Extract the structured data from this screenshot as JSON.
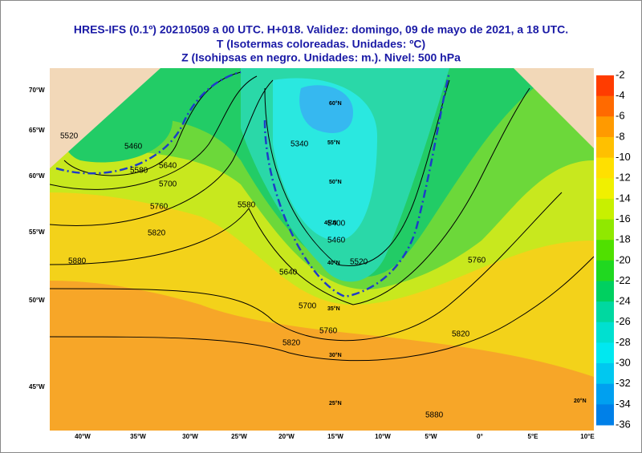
{
  "header": {
    "lines": [
      "HRES-IFS (0.1º) 20210509 a 00 UTC.  H+018. Validez: domingo, 09 de mayo de 2021,  a  18 UTC.",
      "T (Isotermas coloreadas. Unidades: ºC)",
      "Z (Isohipsas en negro. Unidades: m.).   Nivel: 500 hPa"
    ]
  },
  "colorbar": {
    "labels": [
      -2,
      -4,
      -6,
      -8,
      -10,
      -12,
      -14,
      -16,
      -18,
      -20,
      -22,
      -24,
      -26,
      -28,
      -30,
      -32,
      -34,
      -36
    ]
  },
  "left_labels": [
    "70°W",
    "65°W",
    "60°W",
    "55°W",
    "50°W",
    "45°W"
  ],
  "bottom_labels": [
    "40°W",
    "35°W",
    "30°W",
    "25°W",
    "20°W",
    "15°W",
    "10°W",
    "5°W",
    "0°",
    "5°E",
    "10°E"
  ],
  "latitude_labels": [
    "60°N",
    "55°N",
    "50°N",
    "45°N",
    "40°N",
    "35°N",
    "30°N",
    "25°N",
    "20°N"
  ],
  "contour_labels": [
    "5520",
    "5460",
    "5580",
    "5640",
    "5700",
    "5760",
    "5820",
    "5880",
    "5400",
    "5340",
    "5460",
    "5520",
    "5580",
    "5640",
    "5700",
    "5760",
    "5820",
    "5880",
    "5820",
    "5760"
  ]
}
